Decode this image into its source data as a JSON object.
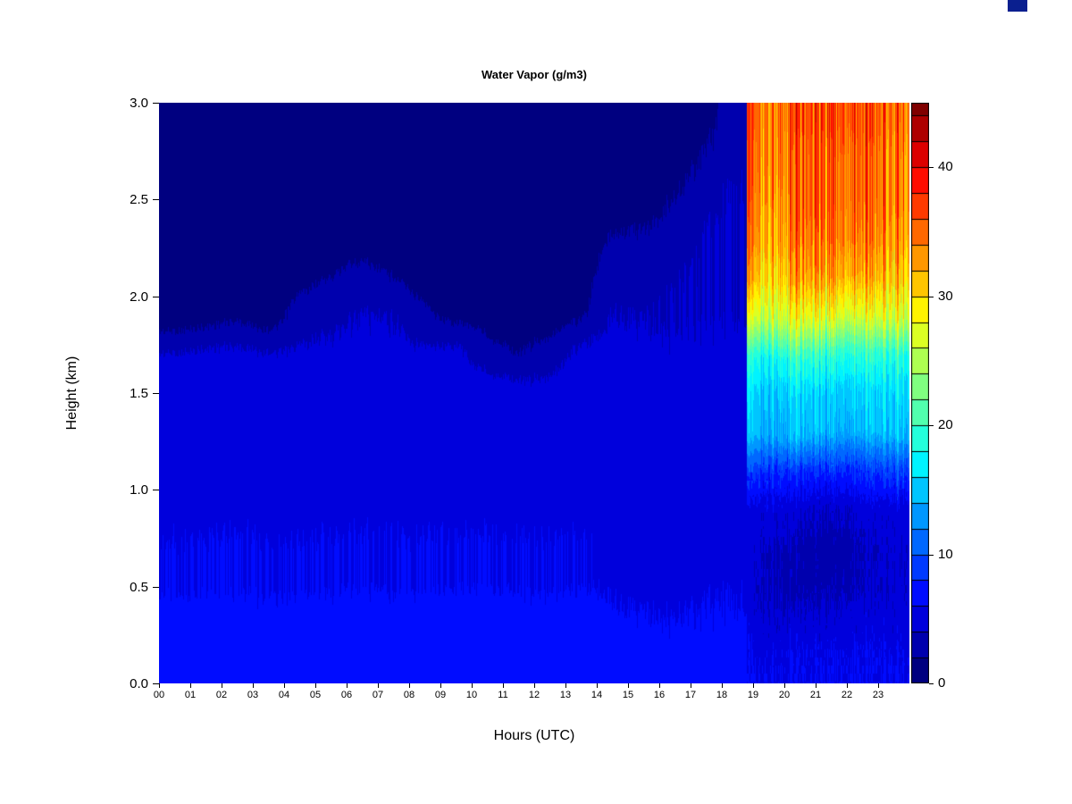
{
  "title": "Water Vapor (g/m3)",
  "axes": {
    "x_label": "Hours (UTC)",
    "y_label": "Height (km)",
    "x_tick_values": [
      0,
      1,
      2,
      3,
      4,
      5,
      6,
      7,
      8,
      9,
      10,
      11,
      12,
      13,
      14,
      15,
      16,
      17,
      18,
      19,
      20,
      21,
      22,
      23
    ],
    "x_ticks": [
      "00",
      "01",
      "02",
      "03",
      "04",
      "05",
      "06",
      "07",
      "08",
      "09",
      "10",
      "11",
      "12",
      "13",
      "14",
      "15",
      "16",
      "17",
      "18",
      "19",
      "20",
      "21",
      "22",
      "23"
    ],
    "y_tick_values": [
      0,
      0.5,
      1,
      1.5,
      2,
      2.5,
      3
    ],
    "y_ticks": [
      "0.0",
      "0.5",
      "1.0",
      "1.5",
      "2.0",
      "2.5",
      "3.0"
    ]
  },
  "colorbar": {
    "min": 0,
    "max": 45,
    "level_step": 2,
    "tick_values": [
      0,
      10,
      20,
      30,
      40
    ],
    "tick_labels": [
      "0",
      "10",
      "20",
      "30",
      "40"
    ],
    "colormap": "jet",
    "bottom_color": "#000080",
    "top_color": "#800000"
  },
  "decorations": {
    "corner_swatch_color": "#0a1f8f"
  },
  "chart_data": {
    "type": "heatmap",
    "title": "Water Vapor (g/m3)",
    "xlabel": "Hours (UTC)",
    "ylabel": "Height (km)",
    "unit": "g/m3",
    "x_range": [
      0,
      24
    ],
    "y_range": [
      0,
      3
    ],
    "value_range": [
      0,
      45
    ],
    "transition_hour": 18.8,
    "x_centers": [
      0.5,
      1.5,
      2.5,
      3.5,
      4.5,
      5.5,
      6.5,
      7.5,
      8.5,
      9.5,
      10.5,
      11.5,
      12.5,
      13.5,
      14.5,
      15.5,
      16.5,
      17.5,
      18.3,
      18.9,
      19.5,
      20.5,
      21.5,
      22.5,
      23.5
    ],
    "y_centers": [
      0.1,
      0.3,
      0.5,
      0.7,
      0.9,
      1.1,
      1.3,
      1.5,
      1.7,
      1.9,
      2.1,
      2.3,
      2.5,
      2.7,
      2.9
    ],
    "values": [
      [
        7,
        7,
        7,
        7,
        7,
        7,
        7,
        7,
        7,
        7,
        7,
        7,
        7,
        7,
        7,
        7,
        7,
        7,
        7,
        6,
        6,
        6,
        6,
        6,
        6
      ],
      [
        7,
        7,
        7,
        7,
        7,
        7,
        7,
        7,
        7,
        7,
        7,
        7,
        7,
        7,
        6.5,
        6.5,
        6.5,
        6.5,
        6.5,
        5,
        4.5,
        5,
        4.5,
        5,
        5
      ],
      [
        6,
        6,
        6,
        6,
        6,
        6,
        6,
        6,
        6,
        6,
        6,
        6,
        6,
        6,
        5.5,
        5.5,
        5.5,
        5.5,
        5.5,
        4.5,
        4,
        3.5,
        3.5,
        4,
        4.5
      ],
      [
        6,
        6,
        6,
        6,
        6,
        6,
        6,
        6,
        6,
        6,
        6,
        6,
        6,
        6,
        5.5,
        5.5,
        5.5,
        5.5,
        5.5,
        4.5,
        4,
        3.5,
        3,
        4,
        4.5
      ],
      [
        5.5,
        5.5,
        5.5,
        5.5,
        5.5,
        5.5,
        5.5,
        5.5,
        5.5,
        5.5,
        5.5,
        5.5,
        5.5,
        5.5,
        5.5,
        5.5,
        5.5,
        5.5,
        5.5,
        5,
        5,
        4.5,
        4,
        5,
        5
      ],
      [
        5.5,
        5.5,
        5.5,
        5.5,
        5.5,
        5.5,
        5.5,
        5.5,
        5.5,
        5.5,
        5.5,
        5.5,
        5.5,
        5.5,
        5.5,
        5.5,
        5.5,
        5.5,
        5.5,
        9,
        8,
        8,
        8,
        9,
        9
      ],
      [
        5,
        5,
        5,
        5,
        5,
        5,
        5,
        5,
        5,
        5,
        5,
        5,
        5,
        5,
        5,
        5,
        5,
        5,
        5,
        15,
        14,
        15,
        14,
        15,
        15
      ],
      [
        5,
        5,
        5,
        5,
        5,
        5,
        5,
        5,
        5,
        5,
        5,
        5,
        5,
        5,
        5,
        5,
        5,
        5,
        5,
        16,
        15,
        16,
        15,
        16,
        16
      ],
      [
        4.5,
        4.5,
        4.5,
        4.5,
        4.5,
        4.5,
        4.5,
        4.5,
        4.5,
        4.5,
        2.5,
        2,
        3,
        4.5,
        4.5,
        4.5,
        4.5,
        4.5,
        4.5,
        19,
        18,
        20,
        19,
        20,
        19
      ],
      [
        1,
        1,
        1.5,
        1,
        3,
        3.5,
        4,
        4,
        2.5,
        1,
        1,
        1,
        1,
        1.5,
        4,
        4,
        4,
        4,
        4,
        27,
        26,
        28,
        27,
        28,
        27
      ],
      [
        1,
        1,
        1,
        1,
        1.5,
        2,
        2.5,
        2,
        1,
        1,
        1,
        1,
        1,
        1,
        3,
        3.5,
        4,
        4,
        4,
        32,
        30,
        33,
        32,
        33,
        31
      ],
      [
        1,
        1,
        1,
        1,
        1,
        1,
        1,
        1,
        1,
        1,
        1,
        1,
        1,
        1,
        2,
        2.5,
        3.5,
        4,
        4,
        34,
        32,
        35,
        34,
        35,
        33
      ],
      [
        1,
        1,
        1,
        1,
        1,
        1,
        1,
        1,
        1,
        1,
        1,
        1,
        1,
        1,
        1,
        1,
        2.5,
        3.5,
        4,
        35,
        33,
        36,
        35,
        36,
        34
      ],
      [
        1,
        1,
        1,
        1,
        1,
        1,
        1,
        1,
        1,
        1,
        1,
        1,
        1,
        1,
        1,
        1,
        1,
        2.5,
        3.5,
        35,
        34,
        36,
        35,
        36,
        34
      ],
      [
        1,
        1,
        1,
        1,
        1,
        1,
        1,
        1,
        1,
        1,
        1,
        1,
        1,
        1,
        1,
        1,
        1,
        1,
        3,
        36,
        34,
        37,
        36,
        37,
        35
      ]
    ]
  }
}
